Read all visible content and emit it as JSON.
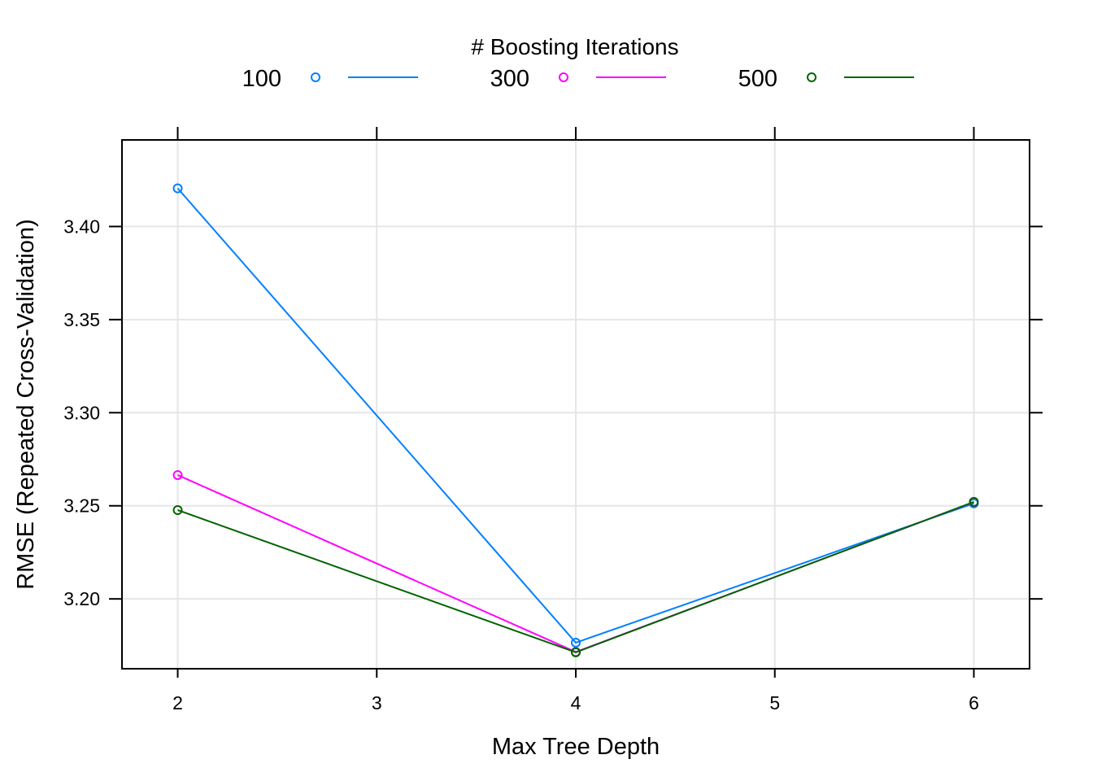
{
  "chart_data": {
    "type": "line",
    "xlabel": "Max Tree Depth",
    "ylabel": "RMSE (Repeated Cross-Validation)",
    "x": [
      2,
      4,
      6
    ],
    "xlim": [
      1.72,
      6.28
    ],
    "ylim": [
      3.1625,
      3.4465
    ],
    "xticks": [
      "2",
      "3",
      "4",
      "5",
      "6"
    ],
    "yticks": [
      "3.20",
      "3.25",
      "3.30",
      "3.35",
      "3.40"
    ],
    "grid": true,
    "legend": {
      "title": "# Boosting Iterations",
      "position": "top"
    },
    "series": [
      {
        "name": "100",
        "color": "#0080ff",
        "values": [
          3.4205,
          3.1765,
          3.2513
        ]
      },
      {
        "name": "300",
        "color": "#ff00ff",
        "values": [
          3.2665,
          3.1715,
          3.252
        ]
      },
      {
        "name": "500",
        "color": "#006400",
        "values": [
          3.2477,
          3.1713,
          3.2521
        ]
      }
    ]
  }
}
